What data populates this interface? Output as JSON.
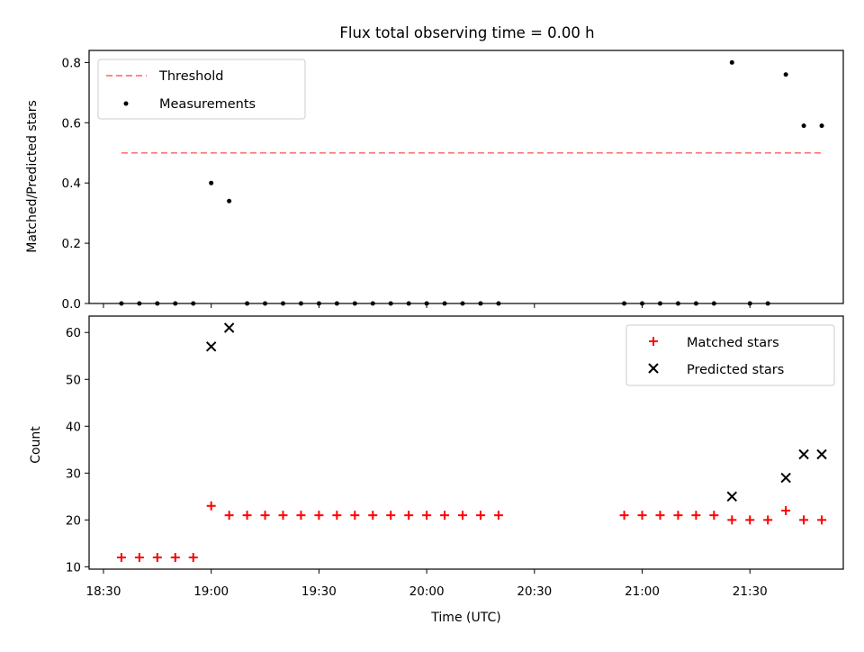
{
  "chart_data": [
    {
      "type": "scatter",
      "title": "Flux total observing time = 0.00 h",
      "ylabel": "Matched/Predicted stars",
      "ylim": [
        0,
        0.84
      ],
      "xlim": [
        "18:26",
        "21:56"
      ],
      "yticks": [
        "0.0",
        "0.2",
        "0.4",
        "0.6",
        "0.8"
      ],
      "ytick_values": [
        0,
        0.2,
        0.4,
        0.6,
        0.8
      ],
      "grid": false,
      "legend": {
        "placement": "top-left"
      },
      "threshold": {
        "name": "Threshold",
        "value": 0.5,
        "x_start": "18:35",
        "x_end": "21:50",
        "color": "#ff7777",
        "style": "dashed"
      },
      "series": [
        {
          "name": "Measurements",
          "color": "#000000",
          "marker": "dot",
          "points": [
            [
              "18:35",
              0
            ],
            [
              "18:40",
              0
            ],
            [
              "18:45",
              0
            ],
            [
              "18:50",
              0
            ],
            [
              "18:55",
              0
            ],
            [
              "19:00",
              0.4
            ],
            [
              "19:05",
              0.34
            ],
            [
              "19:10",
              0
            ],
            [
              "19:15",
              0
            ],
            [
              "19:20",
              0
            ],
            [
              "19:25",
              0
            ],
            [
              "19:30",
              0
            ],
            [
              "19:35",
              0
            ],
            [
              "19:40",
              0
            ],
            [
              "19:45",
              0
            ],
            [
              "19:50",
              0
            ],
            [
              "19:55",
              0
            ],
            [
              "20:00",
              0
            ],
            [
              "20:05",
              0
            ],
            [
              "20:10",
              0
            ],
            [
              "20:15",
              0
            ],
            [
              "20:20",
              0
            ],
            [
              "20:55",
              0
            ],
            [
              "21:00",
              0
            ],
            [
              "21:05",
              0
            ],
            [
              "21:10",
              0
            ],
            [
              "21:15",
              0
            ],
            [
              "21:20",
              0
            ],
            [
              "21:25",
              0.8
            ],
            [
              "21:30",
              0
            ],
            [
              "21:35",
              0
            ],
            [
              "21:40",
              0.76
            ],
            [
              "21:45",
              0.59
            ],
            [
              "21:50",
              0.59
            ]
          ]
        }
      ]
    },
    {
      "type": "scatter",
      "xlabel": "Time (UTC)",
      "ylabel": "Count",
      "ylim": [
        9.5,
        63.5
      ],
      "xlim": [
        "18:26",
        "21:56"
      ],
      "yticks": [
        "10",
        "20",
        "30",
        "40",
        "50",
        "60"
      ],
      "ytick_values": [
        10,
        20,
        30,
        40,
        50,
        60
      ],
      "xticks": [
        "18:30",
        "19:00",
        "19:30",
        "20:00",
        "20:30",
        "21:00",
        "21:30"
      ],
      "grid": false,
      "legend": {
        "placement": "top-right"
      },
      "series": [
        {
          "name": "Matched stars",
          "color": "#ff0000",
          "marker": "plus",
          "points": [
            [
              "18:35",
              12
            ],
            [
              "18:40",
              12
            ],
            [
              "18:45",
              12
            ],
            [
              "18:50",
              12
            ],
            [
              "18:55",
              12
            ],
            [
              "19:00",
              23
            ],
            [
              "19:05",
              21
            ],
            [
              "19:10",
              21
            ],
            [
              "19:15",
              21
            ],
            [
              "19:20",
              21
            ],
            [
              "19:25",
              21
            ],
            [
              "19:30",
              21
            ],
            [
              "19:35",
              21
            ],
            [
              "19:40",
              21
            ],
            [
              "19:45",
              21
            ],
            [
              "19:50",
              21
            ],
            [
              "19:55",
              21
            ],
            [
              "20:00",
              21
            ],
            [
              "20:05",
              21
            ],
            [
              "20:10",
              21
            ],
            [
              "20:15",
              21
            ],
            [
              "20:20",
              21
            ],
            [
              "20:55",
              21
            ],
            [
              "21:00",
              21
            ],
            [
              "21:05",
              21
            ],
            [
              "21:10",
              21
            ],
            [
              "21:15",
              21
            ],
            [
              "21:20",
              21
            ],
            [
              "21:25",
              20
            ],
            [
              "21:30",
              20
            ],
            [
              "21:35",
              20
            ],
            [
              "21:40",
              22
            ],
            [
              "21:45",
              20
            ],
            [
              "21:50",
              20
            ]
          ]
        },
        {
          "name": "Predicted stars",
          "color": "#000000",
          "marker": "x",
          "points": [
            [
              "19:00",
              57
            ],
            [
              "19:05",
              61
            ],
            [
              "21:25",
              25
            ],
            [
              "21:40",
              29
            ],
            [
              "21:45",
              34
            ],
            [
              "21:50",
              34
            ]
          ]
        }
      ]
    }
  ]
}
